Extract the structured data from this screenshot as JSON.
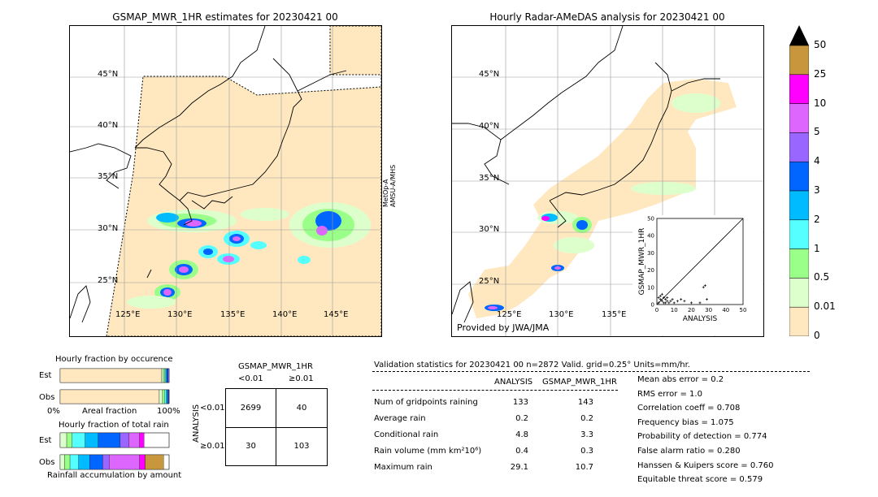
{
  "left_map": {
    "title": "GSMAP_MWR_1HR estimates for 20230421 00",
    "side_label_1": "MetOp-A",
    "side_label_2": "AMSU-A/MHS",
    "lat_labels": [
      "45°N",
      "40°N",
      "35°N",
      "30°N",
      "25°N"
    ],
    "lon_labels": [
      "125°E",
      "130°E",
      "135°E",
      "140°E",
      "145°E"
    ]
  },
  "right_map": {
    "title": "Hourly Radar-AMeDAS analysis for 20230421 00",
    "credit": "Provided by JWA/JMA",
    "lat_labels": [
      "45°N",
      "40°N",
      "35°N",
      "30°N",
      "25°N"
    ],
    "lon_labels": [
      "125°E",
      "130°E",
      "135°E"
    ]
  },
  "colorbar": {
    "labels": [
      "50",
      "25",
      "10",
      "5",
      "4",
      "3",
      "2",
      "1",
      "0.5",
      "0.01",
      "0"
    ],
    "colors": [
      "#c8963c",
      "#ff00ff",
      "#dd66ff",
      "#9966ff",
      "#0066ff",
      "#00bbff",
      "#55ffff",
      "#99ff88",
      "#ddffcc",
      "#ffe8c0"
    ]
  },
  "chart_data": [
    {
      "type": "scatter",
      "title": "",
      "xlabel": "ANALYSIS",
      "ylabel": "GSMAP_MWR_1HR",
      "xlim": [
        0,
        50
      ],
      "ylim": [
        0,
        50
      ],
      "x_ticks": [
        "0",
        "10",
        "20",
        "30",
        "40",
        "50"
      ],
      "y_ticks": [
        "0",
        "10",
        "20",
        "30",
        "40",
        "50"
      ],
      "points": [
        [
          1,
          1
        ],
        [
          2,
          3
        ],
        [
          3,
          2
        ],
        [
          4,
          1
        ],
        [
          5,
          3
        ],
        [
          6,
          2
        ],
        [
          7,
          1
        ],
        [
          8,
          2
        ],
        [
          2,
          5
        ],
        [
          1,
          4
        ],
        [
          3,
          6
        ],
        [
          5,
          1
        ],
        [
          10,
          1
        ],
        [
          12,
          2
        ],
        [
          14,
          3
        ],
        [
          16,
          2
        ],
        [
          20,
          1
        ],
        [
          25,
          1
        ],
        [
          27,
          10
        ],
        [
          28,
          11
        ],
        [
          29,
          3
        ],
        [
          4,
          4
        ],
        [
          6,
          4
        ],
        [
          9,
          3
        ]
      ]
    },
    {
      "type": "bar",
      "title": "Hourly fraction by occurence",
      "categories": [
        "Est",
        "Obs"
      ],
      "xlabel": "Areal fraction",
      "x_ticks": [
        "0%",
        "100%"
      ],
      "colors": [
        "#ffe8c0",
        "#ddffcc",
        "#99ff88",
        "#55ffff",
        "#00bbff",
        "#0066ff",
        "#9966ff"
      ],
      "series_fractions": [
        [
          0.93,
          0.015,
          0.015,
          0.01,
          0.01,
          0.01,
          0.01
        ],
        [
          0.91,
          0.03,
          0.02,
          0.015,
          0.01,
          0.01,
          0.005
        ]
      ]
    },
    {
      "type": "bar",
      "title": "Hourly fraction of total rain",
      "categories": [
        "Est",
        "Obs"
      ],
      "xlabel": "Rainfall accumulation by amount",
      "colors": [
        "#ffe8c0",
        "#ddffcc",
        "#99ff88",
        "#55ffff",
        "#00bbff",
        "#0066ff",
        "#9966ff",
        "#dd66ff",
        "#ff00ff",
        "#c8963c"
      ],
      "series_fractions": [
        [
          0.0,
          0.06,
          0.05,
          0.12,
          0.12,
          0.2,
          0.08,
          0.1,
          0.04,
          0.0
        ],
        [
          0.0,
          0.04,
          0.05,
          0.08,
          0.1,
          0.12,
          0.06,
          0.28,
          0.05,
          0.17
        ]
      ]
    }
  ],
  "contingency": {
    "title": "GSMAP_MWR_1HR",
    "col_headers": [
      "<0.01",
      "≥0.01"
    ],
    "row_axis": "ANALYSIS",
    "row_headers": [
      "<0.01",
      "≥0.01"
    ],
    "cells": [
      [
        "2699",
        "40"
      ],
      [
        "30",
        "103"
      ]
    ]
  },
  "validation": {
    "header": "Validation statistics for 20230421 00  n=2872 Valid. grid=0.25° Units=mm/hr.",
    "col_analysis": "ANALYSIS",
    "col_gsmap": "GSMAP_MWR_1HR",
    "rows": [
      {
        "label": "Num of gridpoints raining",
        "analysis": "133",
        "gsmap": "143"
      },
      {
        "label": "Average rain",
        "analysis": "0.2",
        "gsmap": "0.2"
      },
      {
        "label": "Conditional rain",
        "analysis": "4.8",
        "gsmap": "3.3"
      },
      {
        "label": "Rain volume (mm km²10⁶)",
        "analysis": "0.4",
        "gsmap": "0.3"
      },
      {
        "label": "Maximum rain",
        "analysis": "29.1",
        "gsmap": "10.7"
      }
    ],
    "scores": [
      "Mean abs error =    0.2",
      "RMS error =    1.0",
      "Correlation coeff =  0.708",
      "Frequency bias =  1.075",
      "Probability of detection =  0.774",
      "False alarm ratio =  0.280",
      "Hanssen & Kuipers score =  0.760",
      "Equitable threat score =  0.579"
    ]
  }
}
